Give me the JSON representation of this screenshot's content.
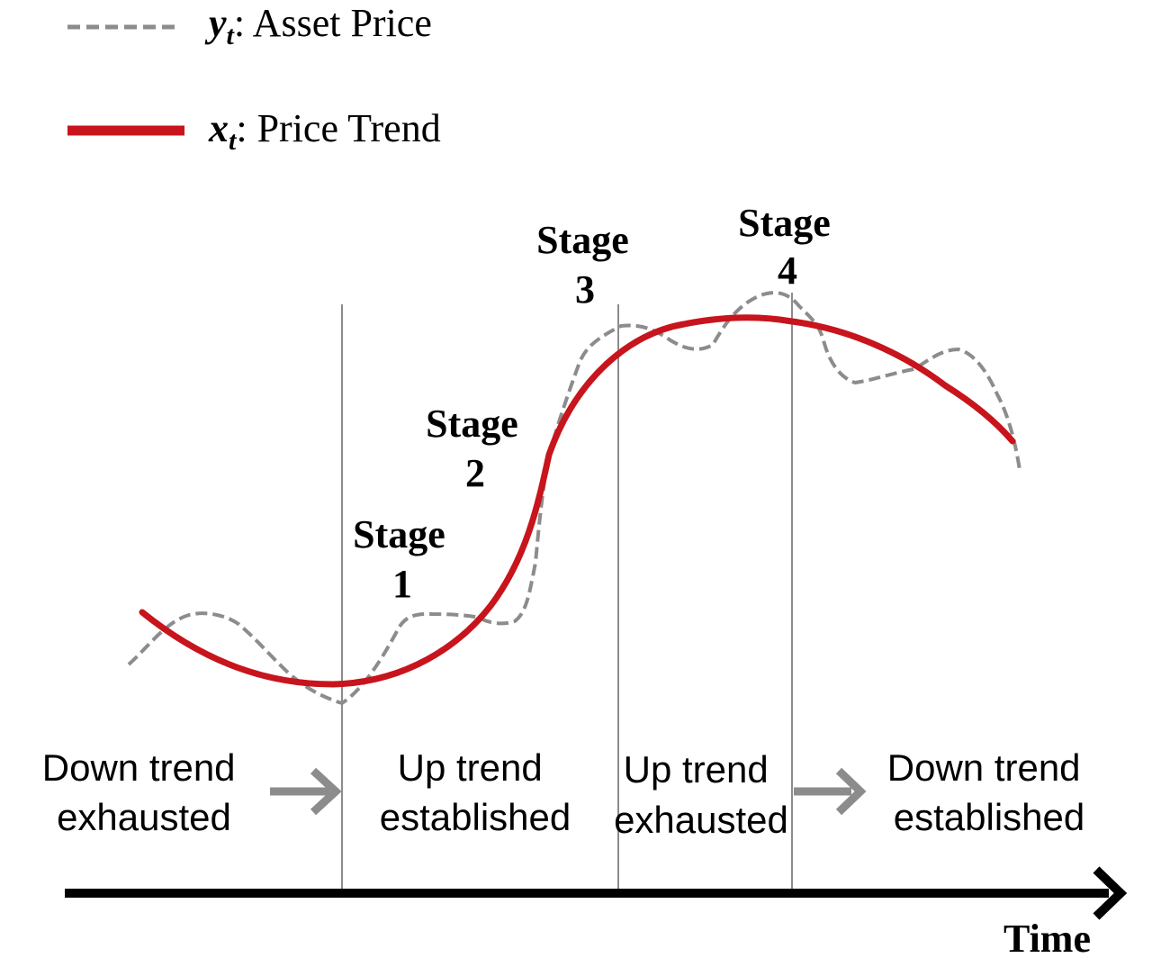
{
  "legend": {
    "price": {
      "symbol": "y",
      "subscript": "t",
      "label": ": Asset Price",
      "color": "#8c8c8c",
      "style": "dashed"
    },
    "trend": {
      "symbol": "x",
      "subscript": "t",
      "label": ": Price Trend",
      "color": "#c8141c",
      "style": "solid"
    }
  },
  "stages": [
    {
      "line1": "Stage",
      "line2": "1"
    },
    {
      "line1": "Stage",
      "line2": "2"
    },
    {
      "line1": "Stage",
      "line2": "3"
    },
    {
      "line1": "Stage",
      "line2": "4"
    }
  ],
  "phases": [
    {
      "line1": "Down trend",
      "line2": "exhausted"
    },
    {
      "line1": "Up trend",
      "line2": "established"
    },
    {
      "line1": "Up trend",
      "line2": "exhausted"
    },
    {
      "line1": "Down trend",
      "line2": "established"
    }
  ],
  "axis": {
    "label": "Time"
  },
  "colors": {
    "divider": "#8c8c8c",
    "arrow": "#8c8c8c",
    "axis": "#000000"
  }
}
